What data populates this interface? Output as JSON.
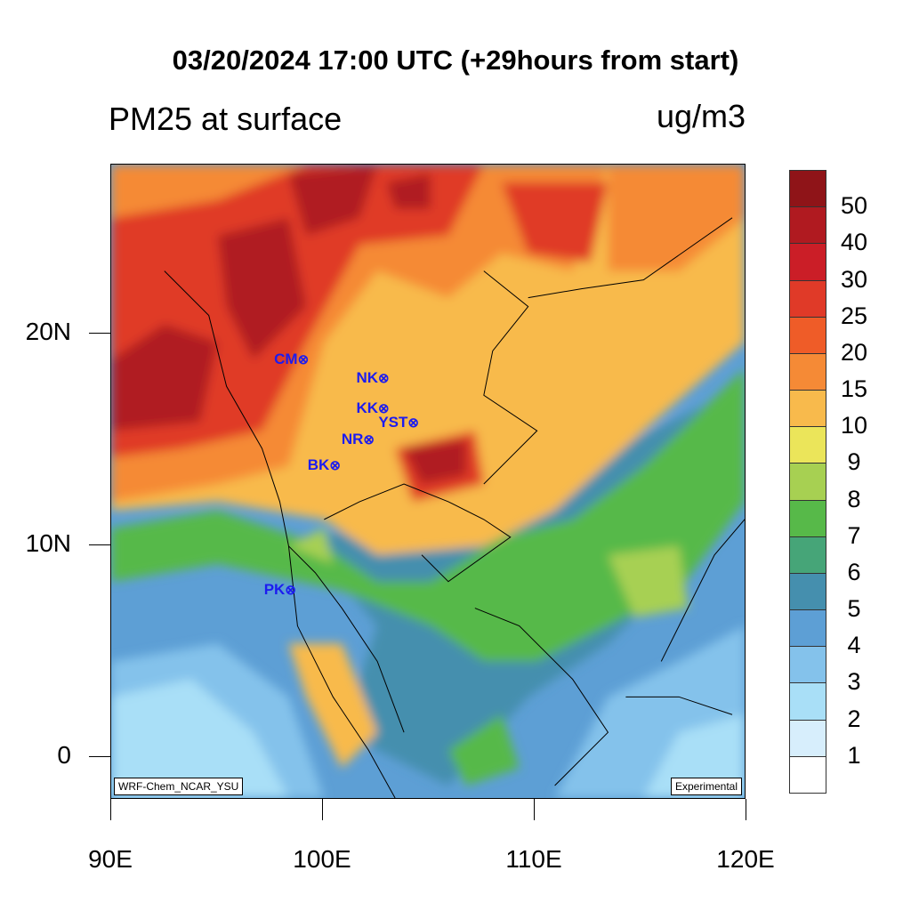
{
  "title": "03/20/2024 17:00 UTC (+29hours from start)",
  "subtitle": "PM25 at surface",
  "units": "ug/m3",
  "map": {
    "lon_range": [
      90,
      120
    ],
    "lat_range": [
      -2,
      28
    ],
    "x_ticks": [
      {
        "lon": 90,
        "label": "90E"
      },
      {
        "lon": 100,
        "label": "100E"
      },
      {
        "lon": 110,
        "label": "110E"
      },
      {
        "lon": 120,
        "label": "120E"
      }
    ],
    "y_ticks": [
      {
        "lat": 0,
        "label": "0"
      },
      {
        "lat": 10,
        "label": "10N"
      },
      {
        "lat": 20,
        "label": "20N"
      }
    ],
    "model_label": "WRF-Chem_NCAR_YSU",
    "status_label": "Experimental",
    "station_marker_icon": "circle-x-icon",
    "stations": [
      {
        "code": "CM",
        "lon": 99.0,
        "lat": 18.8
      },
      {
        "code": "NK",
        "lon": 102.8,
        "lat": 17.9
      },
      {
        "code": "KK",
        "lon": 102.8,
        "lat": 16.5
      },
      {
        "code": "YST",
        "lon": 104.2,
        "lat": 15.8
      },
      {
        "code": "NR",
        "lon": 102.1,
        "lat": 15.0
      },
      {
        "code": "BK",
        "lon": 100.5,
        "lat": 13.8
      },
      {
        "code": "PK",
        "lon": 98.4,
        "lat": 7.9
      }
    ]
  },
  "colorbar": {
    "labels": [
      "50",
      "40",
      "30",
      "25",
      "20",
      "15",
      "10",
      "9",
      "8",
      "7",
      "6",
      "5",
      "4",
      "3",
      "2",
      "1"
    ],
    "colors": [
      "#8f1418",
      "#b01a20",
      "#cb1e27",
      "#e03a28",
      "#ef5c28",
      "#f58a36",
      "#f8ba4c",
      "#ebe55a",
      "#a7d052",
      "#57b949",
      "#46a578",
      "#458fae",
      "#5d9fd5",
      "#84c2eb",
      "#a9dff7",
      "#d7eefc",
      "#ffffff"
    ]
  }
}
